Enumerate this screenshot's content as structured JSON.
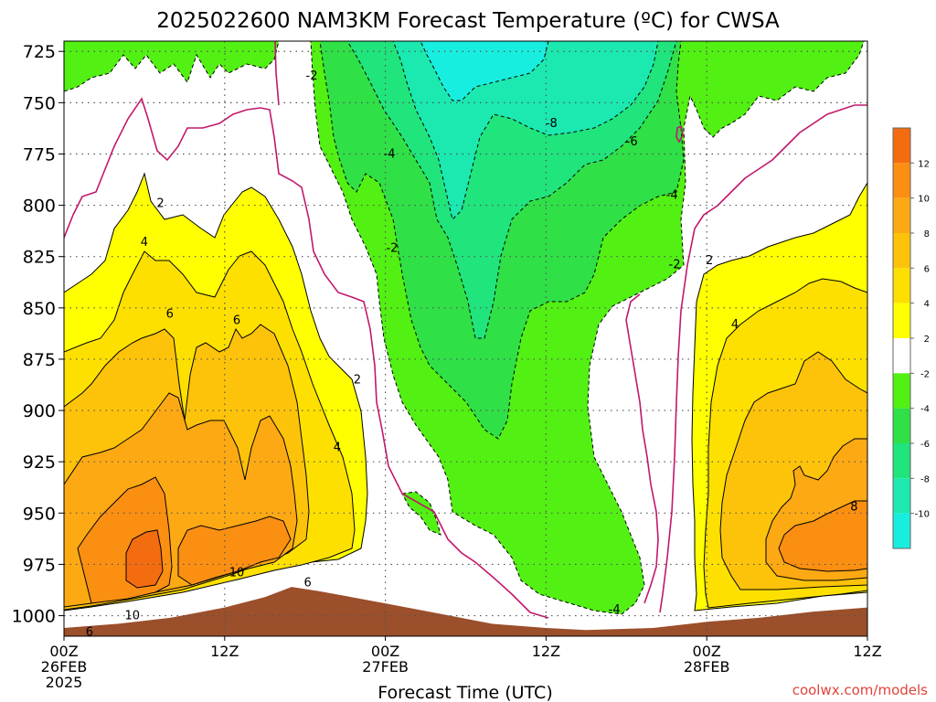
{
  "title": "2025022600 NAM3KM Forecast Temperature (ºC) for CWSA",
  "xlabel": "Forecast Time (UTC)",
  "credit": "coolwx.com/models",
  "colors": {
    "ground": "#9b4f2b",
    "freezing_line": "#c2186b",
    "contour_line": "#000000"
  },
  "chart_data": {
    "type": "heatmap",
    "title": "2025022600 NAM3KM Forecast Temperature (ºC) for CWSA",
    "xlabel": "Forecast Time (UTC)",
    "ylabel": "",
    "x_unit": "forecast hour",
    "x_range": [
      0,
      60
    ],
    "y_range": [
      1010,
      720
    ],
    "y_ticks": [
      "725",
      "750",
      "775",
      "800",
      "825",
      "850",
      "875",
      "900",
      "925",
      "950",
      "975",
      "1000"
    ],
    "x_ticks": [
      {
        "hour": 0,
        "lines": [
          "00Z",
          "26FEB",
          "2025"
        ]
      },
      {
        "hour": 12,
        "lines": [
          "12Z"
        ]
      },
      {
        "hour": 24,
        "lines": [
          "00Z",
          "27FEB"
        ]
      },
      {
        "hour": 36,
        "lines": [
          "12Z"
        ]
      },
      {
        "hour": 48,
        "lines": [
          "00Z",
          "28FEB"
        ]
      },
      {
        "hour": 60,
        "lines": [
          "12Z"
        ]
      }
    ],
    "colorbar": {
      "labels": [
        "12",
        "10",
        "8",
        "6",
        "4",
        "2",
        "-2",
        "-4",
        "-6",
        "-8",
        "-10"
      ],
      "bins": [
        {
          "lo": 12,
          "hi": 14,
          "color": "#f46c10"
        },
        {
          "lo": 10,
          "hi": 12,
          "color": "#fb8f12"
        },
        {
          "lo": 8,
          "hi": 10,
          "color": "#fda914"
        },
        {
          "lo": 6,
          "hi": 8,
          "color": "#fdc30a"
        },
        {
          "lo": 4,
          "hi": 6,
          "color": "#fde000"
        },
        {
          "lo": 2,
          "hi": 4,
          "color": "#ffff00"
        },
        {
          "lo": -2,
          "hi": 2,
          "color": "#ffffff"
        },
        {
          "lo": -4,
          "hi": -2,
          "color": "#52f013"
        },
        {
          "lo": -6,
          "hi": -4,
          "color": "#2fe047"
        },
        {
          "lo": -8,
          "hi": -6,
          "color": "#20e47c"
        },
        {
          "lo": -10,
          "hi": -8,
          "color": "#1be9b0"
        },
        {
          "lo": -12,
          "hi": -10,
          "color": "#18eee0"
        }
      ]
    },
    "surface_pressure_hPa": [
      {
        "hour": 0,
        "p": 1006
      },
      {
        "hour": 4,
        "p": 1004
      },
      {
        "hour": 8,
        "p": 1001
      },
      {
        "hour": 12,
        "p": 996
      },
      {
        "hour": 15,
        "p": 991
      },
      {
        "hour": 17,
        "p": 986
      },
      {
        "hour": 19,
        "p": 988
      },
      {
        "hour": 24,
        "p": 994
      },
      {
        "hour": 28,
        "p": 999
      },
      {
        "hour": 32,
        "p": 1004
      },
      {
        "hour": 36,
        "p": 1006
      },
      {
        "hour": 39,
        "p": 1007
      },
      {
        "hour": 44,
        "p": 1006
      },
      {
        "hour": 48,
        "p": 1003
      },
      {
        "hour": 52,
        "p": 1001
      },
      {
        "hour": 56,
        "p": 998
      },
      {
        "hour": 60,
        "p": 996
      }
    ],
    "contour_labels": [
      {
        "text": "-2",
        "hour": 18.5,
        "p": 737
      },
      {
        "text": "-8",
        "hour": 36.4,
        "p": 760
      },
      {
        "text": "-6",
        "hour": 42.4,
        "p": 769
      },
      {
        "text": "-4",
        "hour": 24.3,
        "p": 775
      },
      {
        "text": "-4",
        "hour": 45.4,
        "p": 795
      },
      {
        "text": "2",
        "hour": 7.2,
        "p": 799
      },
      {
        "text": "-2",
        "hour": 24.5,
        "p": 821
      },
      {
        "text": "-2",
        "hour": 45.6,
        "p": 829
      },
      {
        "text": "2",
        "hour": 48.2,
        "p": 827
      },
      {
        "text": "4",
        "hour": 6.0,
        "p": 818
      },
      {
        "text": "6",
        "hour": 7.9,
        "p": 853
      },
      {
        "text": "6",
        "hour": 12.9,
        "p": 856
      },
      {
        "text": "4",
        "hour": 50.1,
        "p": 858
      },
      {
        "text": "2",
        "hour": 21.9,
        "p": 885
      },
      {
        "text": "4",
        "hour": 20.4,
        "p": 918
      },
      {
        "text": "8",
        "hour": 59.0,
        "p": 947
      },
      {
        "text": "10",
        "hour": 12.9,
        "p": 979
      },
      {
        "text": "6",
        "hour": 18.2,
        "p": 984
      },
      {
        "text": "-4",
        "hour": 41.1,
        "p": 997
      },
      {
        "text": "10",
        "hour": 5.1,
        "p": 1000
      },
      {
        "text": "6",
        "hour": 1.9,
        "p": 1008
      }
    ]
  }
}
